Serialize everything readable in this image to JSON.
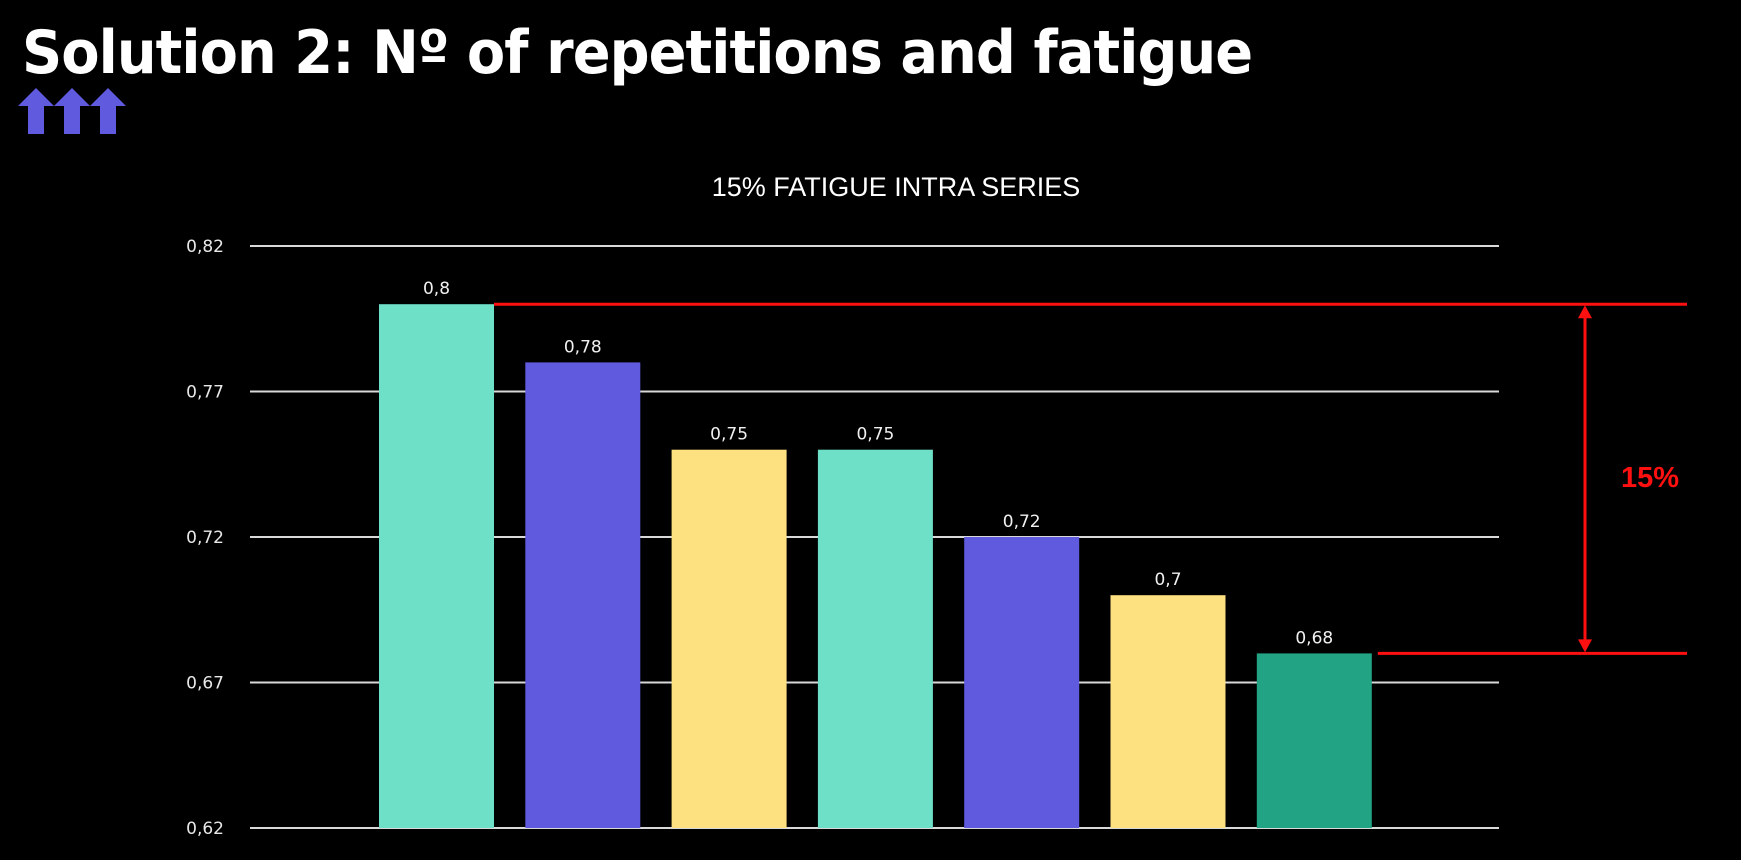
{
  "slide": {
    "title": "Solution 2: Nº of repetitions and fatigue",
    "icon": "three-up-arrows-icon",
    "icon_color": "#5f5ade"
  },
  "chart_data": {
    "type": "bar",
    "title": "15% FATIGUE INTRA SERIES",
    "categories": [
      "",
      "",
      "",
      "",
      "",
      "",
      ""
    ],
    "values": [
      0.8,
      0.78,
      0.75,
      0.75,
      0.72,
      0.7,
      0.68
    ],
    "value_labels": [
      "0,8",
      "0,78",
      "0,75",
      "0,75",
      "0,72",
      "0,7",
      "0,68"
    ],
    "colors": [
      "#6ee0c8",
      "#5f5ade",
      "#fde07f",
      "#6ee0c8",
      "#5f5ade",
      "#fde07f",
      "#22a384"
    ],
    "ylim": [
      0.62,
      0.82
    ],
    "yticks": [
      0.62,
      0.67,
      0.72,
      0.77,
      0.82
    ],
    "ytick_labels": [
      "0,62",
      "0,67",
      "0,72",
      "0,77",
      "0,82"
    ],
    "grid": true,
    "annotation": {
      "label": "15%",
      "from_value": 0.8,
      "to_value": 0.68,
      "color": "#ff1010"
    }
  }
}
